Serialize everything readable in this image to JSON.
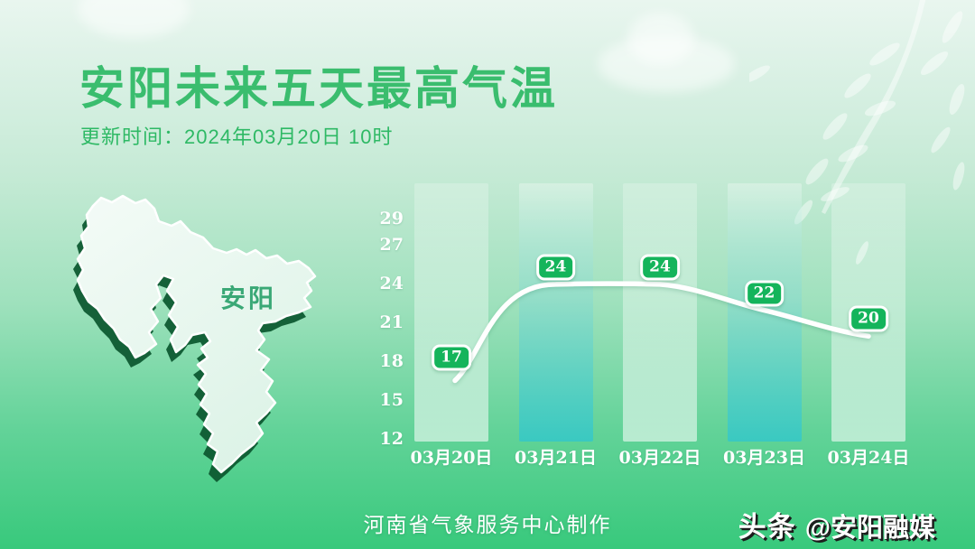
{
  "page": {
    "title": "安阳未来五天最高气温",
    "update_time": "更新时间：2024年03月20日 10时",
    "footer_credit": "河南省气象服务中心制作",
    "brand_logo": "头条",
    "brand_handle": "@安阳融媒"
  },
  "map": {
    "label": "安阳"
  },
  "chart_data": {
    "type": "line",
    "title": "安阳未来五天最高气温",
    "categories": [
      "03月20日",
      "03月21日",
      "03月22日",
      "03月23日",
      "03月24日"
    ],
    "values": [
      17,
      24,
      24,
      22,
      20
    ],
    "yticks": [
      29,
      27,
      24,
      21,
      18,
      15,
      12
    ],
    "ylim": [
      12,
      29
    ],
    "xlabel": "",
    "ylabel": "",
    "legend": "none",
    "grid": false,
    "line_color": "#ffffff",
    "badge_color": "#14b45b",
    "highlight_columns": [
      1,
      3
    ],
    "column_teal_color": "#3ac9c1",
    "background_top": "#e9f6ef",
    "background_bottom": "#38c97c"
  }
}
